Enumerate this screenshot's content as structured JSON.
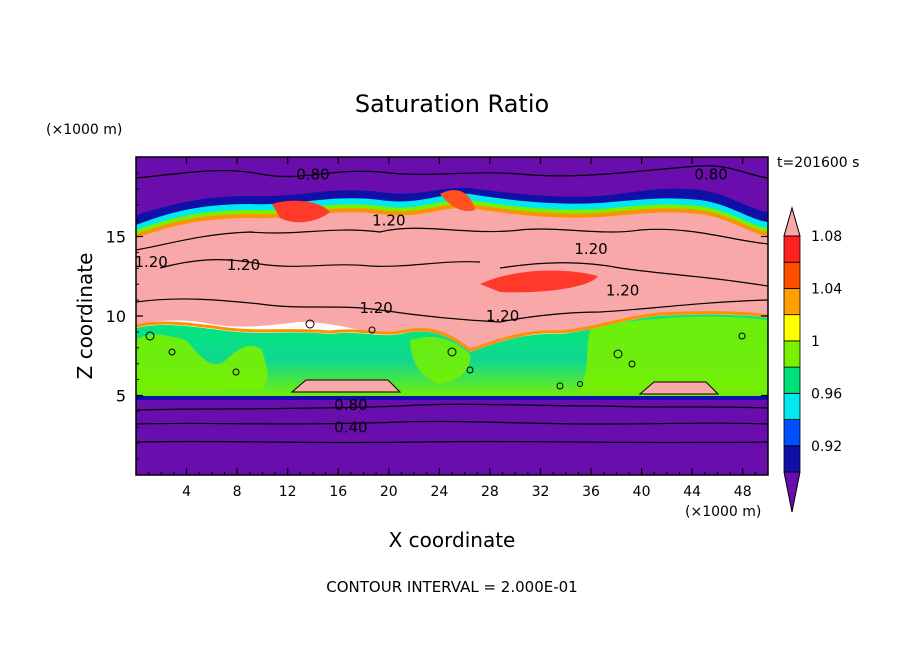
{
  "chart_data": {
    "type": "heatmap",
    "title": "Saturation Ratio",
    "xlabel": "X coordinate",
    "ylabel": "Z coordinate",
    "x_unit": "(×1000 m)",
    "y_unit": "(×1000 m)",
    "time_label": "t=201600 s",
    "footer": "CONTOUR INTERVAL = 2.000E-01",
    "xlim": [
      0,
      50
    ],
    "ylim": [
      0,
      20
    ],
    "x_ticks": [
      4,
      8,
      12,
      16,
      20,
      24,
      28,
      32,
      36,
      40,
      44,
      48
    ],
    "y_ticks": [
      5,
      10,
      15
    ],
    "colorbar": {
      "levels": [
        0.92,
        0.96,
        1,
        1.04,
        1.08
      ],
      "label_texts": [
        "0.92",
        "0.96",
        "1",
        "1.04",
        "1.08"
      ],
      "colors": [
        "#6a0dad",
        "#1010a8",
        "#0050ff",
        "#00e8f0",
        "#00e078",
        "#78f000",
        "#ffff00",
        "#ffa000",
        "#ff5000",
        "#ff2020",
        "#f8a8a8"
      ]
    },
    "contour_labels": [
      {
        "text": "0.80",
        "x": 14,
        "z": 18.9
      },
      {
        "text": "0.80",
        "x": 45.5,
        "z": 18.9
      },
      {
        "text": "1.20",
        "x": 20,
        "z": 16.0
      },
      {
        "text": "1.20",
        "x": 8.5,
        "z": 13.2
      },
      {
        "text": "1.20",
        "x": 36,
        "z": 14.2
      },
      {
        "text": "1.20",
        "x": 38.5,
        "z": 11.6
      },
      {
        "text": "1.20",
        "x": 19,
        "z": 10.5
      },
      {
        "text": "1.20",
        "x": 29,
        "z": 10.0
      },
      {
        "text": "1.20",
        "x": 1.2,
        "z": 13.4
      },
      {
        "text": "0.80",
        "x": 17,
        "z": 4.4
      },
      {
        "text": "0.40",
        "x": 17,
        "z": 3.0
      }
    ]
  }
}
